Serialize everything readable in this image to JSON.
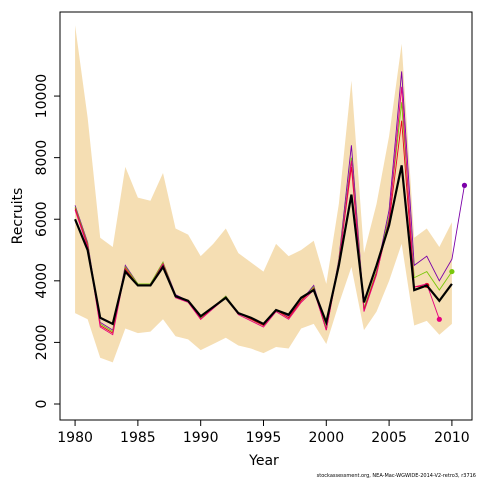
{
  "chart_data": {
    "type": "line",
    "xlabel": "Year",
    "ylabel": "Recruits",
    "footnote": "stockassessment.org, NEA-Mac-WGWIDE-2014-V2-retro3, r3716",
    "x": [
      1980,
      1981,
      1982,
      1983,
      1984,
      1985,
      1986,
      1987,
      1988,
      1989,
      1990,
      1991,
      1992,
      1993,
      1994,
      1995,
      1996,
      1997,
      1998,
      1999,
      2000,
      2001,
      2002,
      2003,
      2004,
      2005,
      2006,
      2007,
      2008,
      2009,
      2010,
      2011
    ],
    "xlim": [
      1978.8,
      2011.6
    ],
    "xticks": [
      1980,
      1985,
      1990,
      1995,
      2000,
      2005,
      2010
    ],
    "ylim": [
      -520,
      12730
    ],
    "yticks": [
      0,
      2000,
      4000,
      6000,
      8000,
      10000
    ],
    "band": {
      "color": "#f5deb3",
      "upper": [
        12300,
        9300,
        5400,
        5100,
        7700,
        6700,
        6600,
        7500,
        5700,
        5500,
        4800,
        5200,
        5700,
        4900,
        4600,
        4300,
        5200,
        4800,
        5000,
        5300,
        3900,
        6500,
        10500,
        4900,
        6500,
        8700,
        11700,
        5400,
        5700,
        5100,
        5900,
        null
      ],
      "lower": [
        2950,
        2750,
        1500,
        1350,
        2450,
        2300,
        2350,
        2750,
        2200,
        2100,
        1750,
        1950,
        2150,
        1900,
        1800,
        1650,
        1850,
        1800,
        2450,
        2600,
        1950,
        3250,
        4450,
        2400,
        3000,
        4000,
        5200,
        2550,
        2700,
        2250,
        2600,
        null
      ]
    },
    "series": [
      {
        "color": "#7b00a8",
        "values": [
          6450,
          5250,
          2650,
          2400,
          4500,
          3900,
          3900,
          4600,
          3550,
          3350,
          2800,
          3150,
          3500,
          2950,
          2750,
          2550,
          3050,
          2850,
          3350,
          3850,
          2450,
          4700,
          8400,
          3100,
          4300,
          6300,
          10800,
          4500,
          4800,
          4000,
          4700,
          7100
        ]
      },
      {
        "color": "#7ac70c",
        "values": [
          6400,
          5200,
          2600,
          2350,
          4450,
          3900,
          3900,
          4600,
          3500,
          3350,
          2800,
          3150,
          3500,
          2950,
          2750,
          2550,
          3050,
          2800,
          3350,
          3800,
          2450,
          4650,
          8000,
          3100,
          4300,
          6100,
          9800,
          4100,
          4300,
          3700,
          4300,
          null
        ]
      },
      {
        "color": "#e8001c",
        "values": [
          6350,
          5150,
          2550,
          2300,
          4400,
          3850,
          3850,
          4550,
          3500,
          3350,
          2750,
          3150,
          3450,
          2950,
          2750,
          2550,
          3050,
          2800,
          3350,
          3750,
          2400,
          4600,
          7700,
          3050,
          4250,
          5900,
          9200,
          3800,
          3850,
          null,
          null,
          null
        ]
      },
      {
        "color": "#e6007e",
        "values": [
          6300,
          5100,
          2500,
          2250,
          4350,
          3850,
          3850,
          4550,
          3450,
          3300,
          2750,
          3100,
          3450,
          2900,
          2700,
          2500,
          3000,
          2750,
          3300,
          3700,
          2400,
          4550,
          7900,
          3000,
          4200,
          6000,
          10300,
          3800,
          3900,
          2750,
          null,
          null
        ]
      },
      {
        "color": "#000000",
        "width": 2.2,
        "values": [
          6000,
          5000,
          2800,
          2600,
          4300,
          3850,
          3850,
          4450,
          3500,
          3350,
          2850,
          3150,
          3450,
          2950,
          2800,
          2600,
          3050,
          2900,
          3450,
          3700,
          2650,
          4500,
          6800,
          3300,
          4500,
          5800,
          7750,
          3700,
          3850,
          3350,
          3900,
          null
        ]
      }
    ]
  }
}
